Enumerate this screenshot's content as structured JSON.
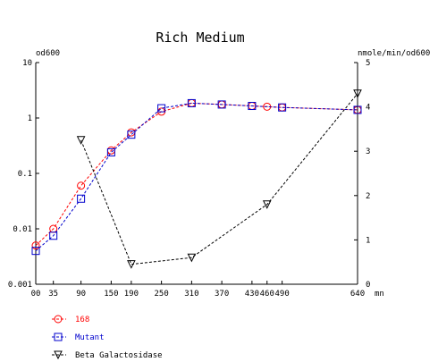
{
  "chart_data": {
    "type": "line",
    "title": "Rich Medium",
    "left_axis_unit": "od600",
    "right_axis_unit": "nmole/min/od600",
    "x_unit": "mn",
    "x_ticks": [
      0,
      35,
      90,
      150,
      190,
      250,
      310,
      370,
      430,
      460,
      490,
      640
    ],
    "x_tick_labels": [
      "00",
      "35",
      "90",
      "150",
      "190",
      "250",
      "310",
      "370",
      "430",
      "460",
      "490",
      "640"
    ],
    "xlim": [
      0,
      640
    ],
    "y_left": {
      "scale": "log",
      "lim": [
        0.001,
        10
      ],
      "tick_labels": [
        "10",
        "1",
        "0.1",
        "0.01",
        "0.001"
      ],
      "ticks": [
        10,
        1,
        0.1,
        0.01,
        0.001
      ]
    },
    "y_right": {
      "scale": "linear",
      "lim": [
        0,
        5
      ],
      "tick_labels": [
        "5",
        "4",
        "3",
        "2",
        "1",
        "0"
      ],
      "ticks": [
        5,
        4,
        3,
        2,
        1,
        0
      ]
    },
    "series": [
      {
        "name": "168",
        "color": "#ff0000",
        "marker": "circle",
        "axis": "left",
        "x": [
          0,
          35,
          90,
          150,
          190,
          250,
          310,
          370,
          430,
          460,
          490,
          640
        ],
        "y": [
          0.005,
          0.01,
          0.06,
          0.26,
          0.55,
          1.3,
          1.85,
          1.75,
          1.65,
          1.6,
          1.55,
          1.4
        ]
      },
      {
        "name": "Mutant",
        "color": "#0000cc",
        "marker": "square",
        "axis": "left",
        "x": [
          0,
          35,
          90,
          150,
          190,
          250,
          310,
          370,
          430,
          490,
          640
        ],
        "y": [
          0.004,
          0.0075,
          0.035,
          0.24,
          0.5,
          1.5,
          1.85,
          1.75,
          1.65,
          1.55,
          1.4
        ]
      },
      {
        "name": "Beta Galactosidase",
        "color": "#000000",
        "marker": "triangle-down",
        "axis": "right",
        "x": [
          90,
          190,
          310,
          460,
          640
        ],
        "y": [
          3.25,
          0.45,
          0.6,
          1.8,
          4.3
        ]
      }
    ],
    "legend_position": "bottom-left"
  }
}
